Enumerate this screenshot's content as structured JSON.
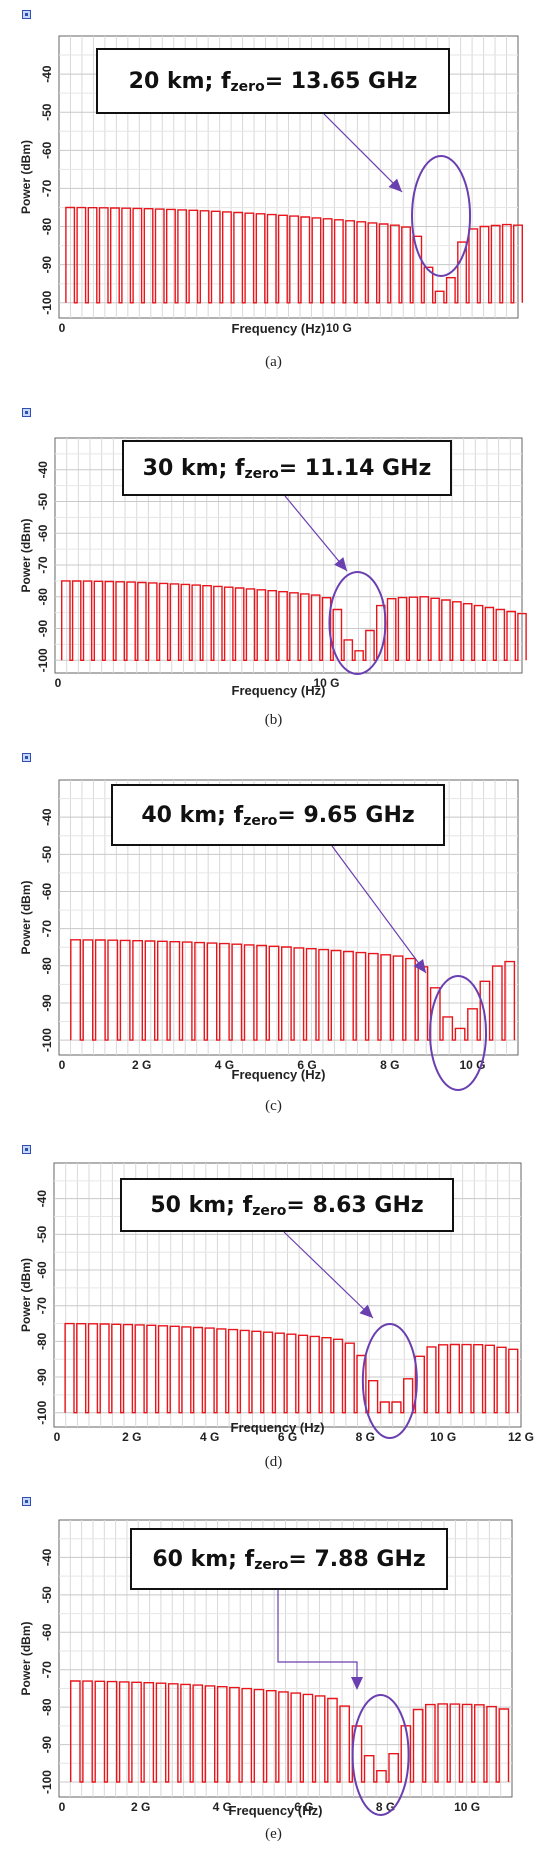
{
  "colors": {
    "trace": "#e8151b",
    "circle": "#6a3fb0",
    "arrow": "#6a3fb0",
    "grid": "#d9d9d9",
    "axis": "#666666"
  },
  "chart_data": [
    {
      "type": "line",
      "caption": "(a)",
      "annotation": {
        "prefix": "20 km; f",
        "sub": "zero",
        "suffix": "= 13.65 GHz"
      },
      "xlabel": "Frequency (Hz)",
      "ylabel": "Power (dBm)",
      "xlim": [
        0,
        16.4
      ],
      "ylim": [
        -104,
        -30
      ],
      "x_ticks": [
        {
          "v": 0,
          "label": "0"
        },
        {
          "v": 10,
          "label": "10 G"
        }
      ],
      "y_ticks": [
        -40,
        -50,
        -60,
        -70,
        -80,
        -90,
        -100
      ],
      "zero_freq_ghz": 13.65,
      "series": [
        {
          "values": {
            "x0": 0.4,
            "step": 0.4,
            "floor": -100,
            "peak_base": -75
          },
          "envelope_null_ghz": 13.65
        }
      ]
    },
    {
      "type": "line",
      "caption": "(b)",
      "annotation": {
        "prefix": "30 km; f",
        "sub": "zero",
        "suffix": "= 11.14 GHz"
      },
      "xlabel": "Frequency (Hz)",
      "ylabel": "Power (dBm)",
      "xlim": [
        0,
        17.2
      ],
      "ylim": [
        -104,
        -30
      ],
      "x_ticks": [
        {
          "v": 0,
          "label": "0"
        },
        {
          "v": 10,
          "label": "10 G"
        }
      ],
      "y_ticks": [
        -40,
        -50,
        -60,
        -70,
        -80,
        -90,
        -100
      ],
      "zero_freq_ghz": 11.14,
      "series": [
        {
          "values": {
            "x0": 0.4,
            "step": 0.4,
            "floor": -100,
            "peak_base": -75
          },
          "envelope_null_ghz": 11.14
        }
      ]
    },
    {
      "type": "line",
      "caption": "(c)",
      "annotation": {
        "prefix": "40 km; f",
        "sub": "zero",
        "suffix": "= 9.65 GHz"
      },
      "xlabel": "Frequency (Hz)",
      "ylabel": "Power (dBm)",
      "xlim": [
        0,
        11.1
      ],
      "ylim": [
        -104,
        -30
      ],
      "x_ticks": [
        {
          "v": 0,
          "label": "0"
        },
        {
          "v": 2,
          "label": "2 G"
        },
        {
          "v": 4,
          "label": "4 G"
        },
        {
          "v": 6,
          "label": "6 G"
        },
        {
          "v": 8,
          "label": "8 G"
        },
        {
          "v": 10,
          "label": "10 G"
        }
      ],
      "y_ticks": [
        -40,
        -50,
        -60,
        -70,
        -80,
        -90,
        -100
      ],
      "zero_freq_ghz": 9.65,
      "series": [
        {
          "values": {
            "x0": 0.4,
            "step": 0.3,
            "floor": -100,
            "peak_base": -73
          },
          "envelope_null_ghz": 9.65
        }
      ]
    },
    {
      "type": "line",
      "caption": "(d)",
      "annotation": {
        "prefix": "50 km; f",
        "sub": "zero",
        "suffix": "= 8.63 GHz"
      },
      "xlabel": "Frequency (Hz)",
      "ylabel": "Power (dBm)",
      "xlim": [
        0,
        12
      ],
      "ylim": [
        -104,
        -30
      ],
      "x_ticks": [
        {
          "v": 0,
          "label": "0"
        },
        {
          "v": 2,
          "label": "2 G"
        },
        {
          "v": 4,
          "label": "4 G"
        },
        {
          "v": 6,
          "label": "6 G"
        },
        {
          "v": 8,
          "label": "8 G"
        },
        {
          "v": 10,
          "label": "10 G"
        },
        {
          "v": 12,
          "label": "12 G"
        }
      ],
      "y_ticks": [
        -40,
        -50,
        -60,
        -70,
        -80,
        -90,
        -100
      ],
      "zero_freq_ghz": 8.63,
      "series": [
        {
          "values": {
            "x0": 0.4,
            "step": 0.3,
            "floor": -100,
            "peak_base": -75
          },
          "envelope_null_ghz": 8.63
        }
      ]
    },
    {
      "type": "line",
      "caption": "(e)",
      "annotation": {
        "prefix": "60 km; f",
        "sub": "zero",
        "suffix": "= 7.88 GHz"
      },
      "xlabel": "Frequency (Hz)",
      "ylabel": "Power (dBm)",
      "xlim": [
        0,
        11.1
      ],
      "ylim": [
        -104,
        -30
      ],
      "x_ticks": [
        {
          "v": 0,
          "label": "0"
        },
        {
          "v": 2,
          "label": "2 G"
        },
        {
          "v": 4,
          "label": "4 G"
        },
        {
          "v": 6,
          "label": "6 G"
        },
        {
          "v": 8,
          "label": "8 G"
        },
        {
          "v": 10,
          "label": "10 G"
        }
      ],
      "y_ticks": [
        -40,
        -50,
        -60,
        -70,
        -80,
        -90,
        -100
      ],
      "zero_freq_ghz": 7.88,
      "series": [
        {
          "values": {
            "x0": 0.4,
            "step": 0.3,
            "floor": -100,
            "peak_base": -73
          },
          "envelope_null_ghz": 7.88
        }
      ]
    }
  ]
}
